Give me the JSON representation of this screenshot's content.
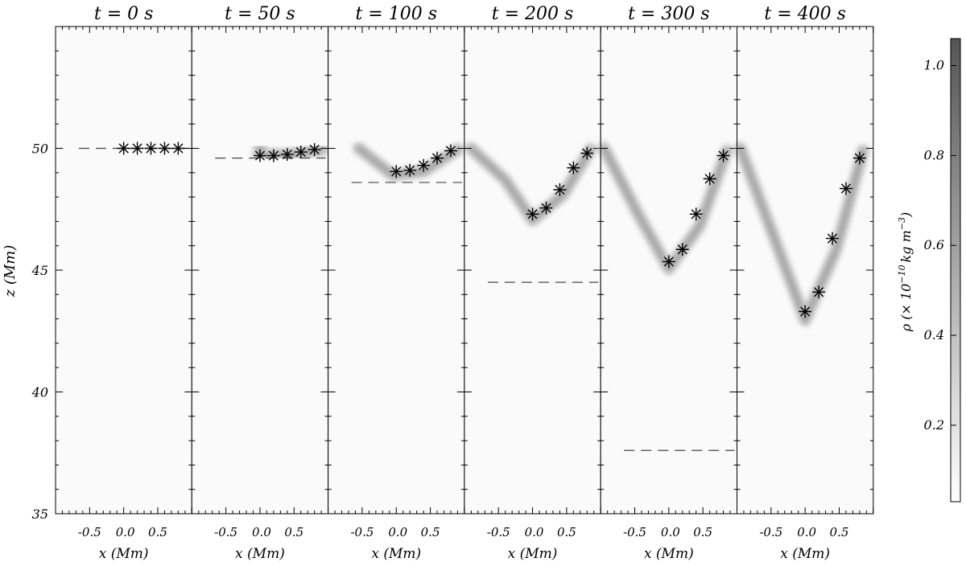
{
  "chart_data": {
    "type": "heatmap",
    "panels": [
      {
        "title": "t = 0 s",
        "markers": [
          [
            0.0,
            50.0
          ],
          [
            0.2,
            50.0
          ],
          [
            0.4,
            50.0
          ],
          [
            0.6,
            50.0
          ],
          [
            0.8,
            50.0
          ]
        ],
        "dashed_z": 50.0,
        "blob": [
          [
            0.25,
            50.0
          ],
          [
            0.0,
            50.0
          ],
          [
            0.4,
            50.0
          ],
          [
            0.9,
            50.0
          ]
        ]
      },
      {
        "title": "t = 50 s",
        "markers": [
          [
            0.0,
            49.7
          ],
          [
            0.2,
            49.7
          ],
          [
            0.4,
            49.75
          ],
          [
            0.6,
            49.85
          ],
          [
            0.8,
            49.95
          ]
        ],
        "dashed_z": 49.6,
        "blob": [
          [
            0.0,
            50.0
          ],
          [
            0.0,
            49.7
          ],
          [
            0.4,
            49.7
          ],
          [
            0.9,
            49.95
          ]
        ]
      },
      {
        "title": "t = 100 s",
        "markers": [
          [
            0.0,
            49.05
          ],
          [
            0.2,
            49.1
          ],
          [
            0.4,
            49.3
          ],
          [
            0.6,
            49.6
          ],
          [
            0.8,
            49.9
          ]
        ],
        "dashed_z": 48.6,
        "blob": [
          [
            -0.55,
            50.0
          ],
          [
            -0.05,
            48.9
          ],
          [
            0.4,
            49.05
          ],
          [
            0.9,
            49.95
          ]
        ]
      },
      {
        "title": "t = 200 s",
        "markers": [
          [
            0.0,
            47.3
          ],
          [
            0.2,
            47.55
          ],
          [
            0.4,
            48.3
          ],
          [
            0.6,
            49.2
          ],
          [
            0.8,
            49.8
          ]
        ],
        "dashed_z": 44.5,
        "blob": [
          [
            -0.9,
            50.0
          ],
          [
            -0.4,
            48.7
          ],
          [
            0.0,
            47.05
          ],
          [
            0.45,
            48.1
          ],
          [
            0.85,
            49.95
          ]
        ]
      },
      {
        "title": "t = 300 s",
        "markers": [
          [
            0.0,
            45.35
          ],
          [
            0.2,
            45.85
          ],
          [
            0.4,
            47.3
          ],
          [
            0.6,
            48.75
          ],
          [
            0.8,
            49.7
          ]
        ],
        "dashed_z": 37.6,
        "blob": [
          [
            -0.95,
            50.0
          ],
          [
            -0.45,
            47.3
          ],
          [
            0.0,
            45.05
          ],
          [
            0.45,
            46.8
          ],
          [
            0.85,
            49.9
          ]
        ]
      },
      {
        "title": "t = 400 s",
        "markers": [
          [
            0.0,
            43.3
          ],
          [
            0.2,
            44.1
          ],
          [
            0.4,
            46.3
          ],
          [
            0.6,
            48.35
          ],
          [
            0.8,
            49.6
          ]
        ],
        "dashed_z": null,
        "blob": [
          [
            -0.95,
            50.0
          ],
          [
            -0.45,
            46.3
          ],
          [
            0.0,
            42.95
          ],
          [
            0.45,
            45.8
          ],
          [
            0.85,
            49.9
          ]
        ]
      }
    ],
    "xlabel": "x (Mm)",
    "ylabel": "z (Mm)",
    "xticks": [
      "-0.5",
      "0.0",
      "0.5"
    ],
    "xlim": [
      -1.0,
      1.0
    ],
    "ylim": [
      35,
      55
    ],
    "yticks": [
      35,
      40,
      45,
      50
    ],
    "colorbar": {
      "label": "ρ (× 10",
      "label_exp": "−10",
      "label_tail": "kg m",
      "label_exp2": "−3",
      "label_close": ")",
      "ticks": [
        "0.2",
        "0.4",
        "0.6",
        "0.8",
        "1.0"
      ],
      "tick_values": [
        0.2,
        0.4,
        0.6,
        0.8,
        1.0
      ],
      "range": [
        0.03,
        1.06
      ],
      "colors": [
        "#ffffff",
        "#555555"
      ]
    }
  }
}
